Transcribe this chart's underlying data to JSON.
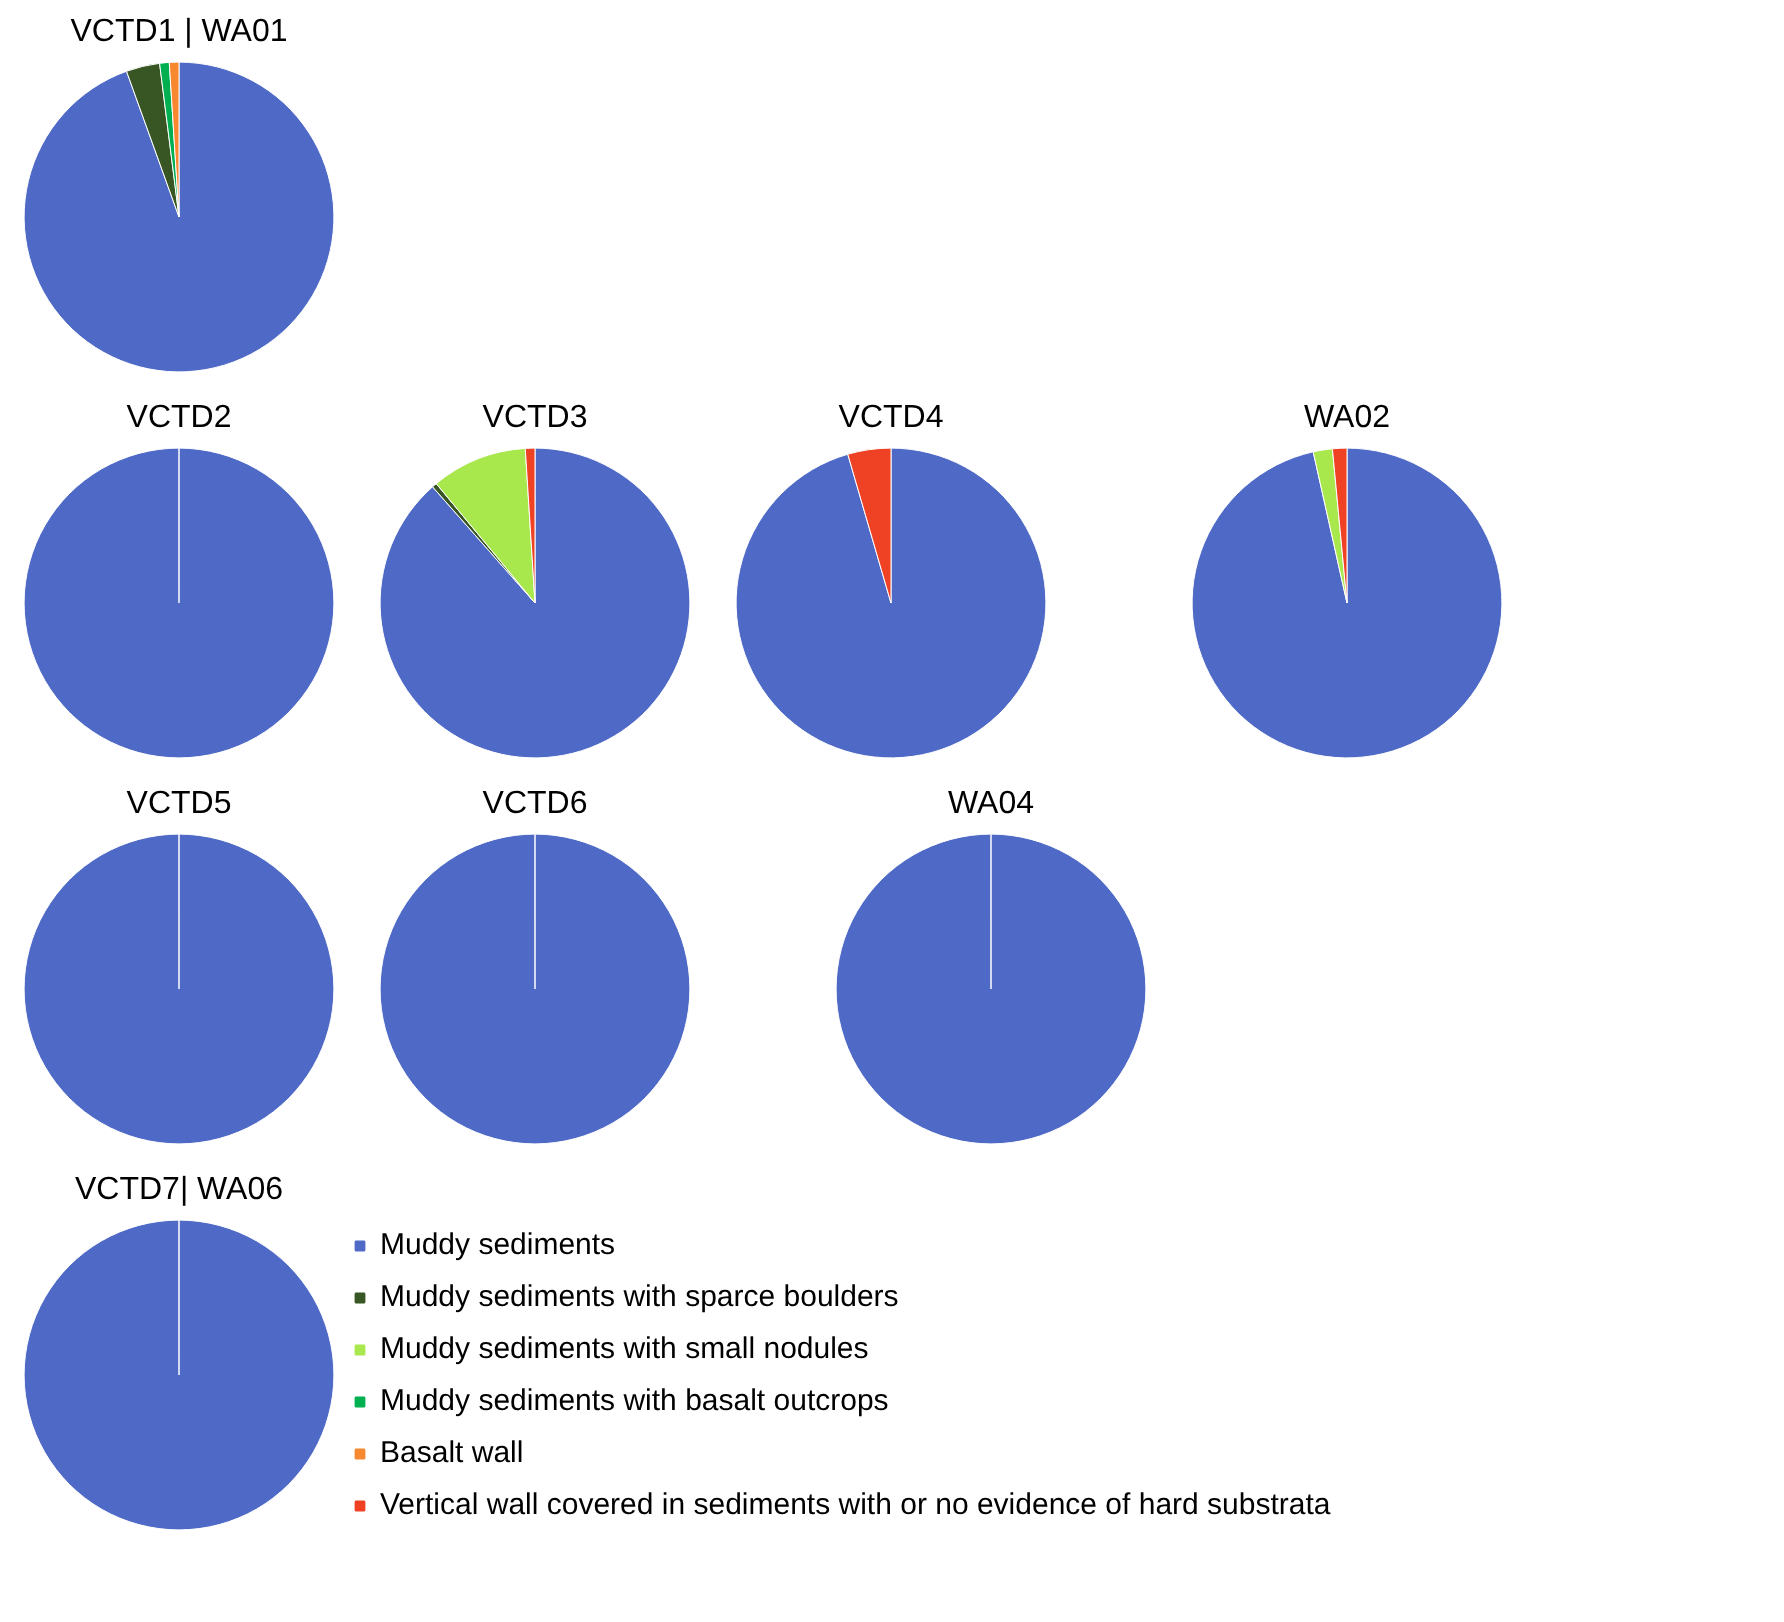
{
  "chart_data": [
    {
      "type": "pie",
      "title": "VCTD1 | WA01",
      "values": [
        94.5,
        3.5,
        0,
        1,
        1,
        0
      ],
      "colors": [
        "#4f69c6",
        "#375623",
        "#a9e84d",
        "#00b050",
        "#f7882f",
        "#ef4123"
      ]
    },
    {
      "type": "pie",
      "title": "VCTD2",
      "values": [
        100,
        0,
        0,
        0,
        0,
        0
      ],
      "colors": [
        "#4f69c6",
        "#375623",
        "#a9e84d",
        "#00b050",
        "#f7882f",
        "#ef4123"
      ]
    },
    {
      "type": "pie",
      "title": "VCTD3",
      "values": [
        88.5,
        0.5,
        10,
        0,
        0,
        1
      ],
      "colors": [
        "#4f69c6",
        "#375623",
        "#a9e84d",
        "#00b050",
        "#f7882f",
        "#ef4123"
      ]
    },
    {
      "type": "pie",
      "title": "VCTD4",
      "values": [
        95.5,
        0,
        0,
        0,
        0,
        4.5
      ],
      "colors": [
        "#4f69c6",
        "#375623",
        "#a9e84d",
        "#00b050",
        "#f7882f",
        "#ef4123"
      ]
    },
    {
      "type": "pie",
      "title": "WA02",
      "values": [
        96.5,
        0,
        2,
        0,
        0,
        1.5
      ],
      "colors": [
        "#4f69c6",
        "#375623",
        "#a9e84d",
        "#00b050",
        "#f7882f",
        "#ef4123"
      ]
    },
    {
      "type": "pie",
      "title": "VCTD5",
      "values": [
        100,
        0,
        0,
        0,
        0,
        0
      ],
      "colors": [
        "#4f69c6",
        "#375623",
        "#a9e84d",
        "#00b050",
        "#f7882f",
        "#ef4123"
      ]
    },
    {
      "type": "pie",
      "title": "VCTD6",
      "values": [
        100,
        0,
        0,
        0,
        0,
        0
      ],
      "colors": [
        "#4f69c6",
        "#375623",
        "#a9e84d",
        "#00b050",
        "#f7882f",
        "#ef4123"
      ]
    },
    {
      "type": "pie",
      "title": "WA04",
      "values": [
        100,
        0,
        0,
        0,
        0,
        0
      ],
      "colors": [
        "#4f69c6",
        "#375623",
        "#a9e84d",
        "#00b050",
        "#f7882f",
        "#ef4123"
      ]
    },
    {
      "type": "pie",
      "title": "VCTD7| WA06",
      "categories": [
        "Muddy sediments",
        "Muddy sediments with sparce boulders",
        "Muddy sediments with small nodules",
        "Muddy sediments with basalt outcrops",
        "Basalt wall",
        "Vertical wall covered in sediments with or no evidence of hard substrata"
      ],
      "values": [
        100,
        0,
        0,
        0,
        0,
        0
      ],
      "colors": [
        "#4f69c6",
        "#375623",
        "#a9e84d",
        "#00b050",
        "#f7882f",
        "#ef4123"
      ],
      "legend": "right"
    }
  ]
}
